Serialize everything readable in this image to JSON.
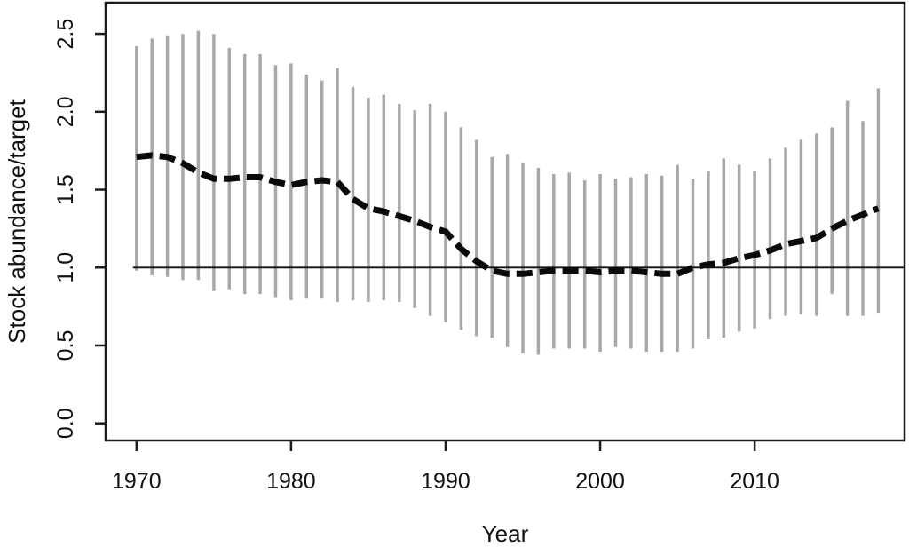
{
  "figure": {
    "xlabel": "Year",
    "ylabel": "Stock abundance/target"
  },
  "chart_data": {
    "type": "line",
    "title": "",
    "xlabel": "Year",
    "ylabel": "Stock abundance/target",
    "grid": false,
    "legend": null,
    "x_tick_labels": [
      "1970",
      "1980",
      "1990",
      "2000",
      "2010"
    ],
    "x_tick_values": [
      1970,
      1980,
      1990,
      2000,
      2010
    ],
    "y_tick_labels": [
      "0.0",
      "0.5",
      "1.0",
      "1.5",
      "2.0",
      "2.5"
    ],
    "y_tick_values": [
      0.0,
      0.5,
      1.0,
      1.5,
      2.0,
      2.5
    ],
    "xlim": [
      1968.0,
      2019.7
    ],
    "ylim": [
      -0.11,
      2.7
    ],
    "reference_line_y": 1.0,
    "years": [
      1970,
      1971,
      1972,
      1973,
      1974,
      1975,
      1976,
      1977,
      1978,
      1979,
      1980,
      1981,
      1982,
      1983,
      1984,
      1985,
      1986,
      1987,
      1988,
      1989,
      1990,
      1991,
      1992,
      1993,
      1994,
      1995,
      1996,
      1997,
      1998,
      1999,
      2000,
      2001,
      2002,
      2003,
      2004,
      2005,
      2006,
      2007,
      2008,
      2009,
      2010,
      2011,
      2012,
      2013,
      2014,
      2015,
      2016,
      2017,
      2018
    ],
    "series": [
      {
        "name": "stock-abundance-relative-to-target",
        "style": "thick-dashed-black",
        "values": [
          1.71,
          1.72,
          1.71,
          1.67,
          1.61,
          1.57,
          1.57,
          1.58,
          1.58,
          1.55,
          1.53,
          1.55,
          1.56,
          1.55,
          1.44,
          1.38,
          1.36,
          1.33,
          1.3,
          1.26,
          1.23,
          1.12,
          1.04,
          0.98,
          0.96,
          0.96,
          0.97,
          0.98,
          0.98,
          0.98,
          0.97,
          0.98,
          0.98,
          0.97,
          0.96,
          0.96,
          1.0,
          1.02,
          1.03,
          1.06,
          1.08,
          1.11,
          1.15,
          1.17,
          1.19,
          1.25,
          1.3,
          1.34,
          1.38
        ]
      }
    ],
    "error_bar_lower": [
      0.98,
      0.95,
      0.94,
      0.92,
      0.92,
      0.85,
      0.86,
      0.83,
      0.83,
      0.81,
      0.79,
      0.8,
      0.8,
      0.78,
      0.79,
      0.78,
      0.79,
      0.78,
      0.74,
      0.69,
      0.65,
      0.6,
      0.56,
      0.55,
      0.49,
      0.45,
      0.44,
      0.48,
      0.48,
      0.48,
      0.46,
      0.49,
      0.48,
      0.46,
      0.46,
      0.46,
      0.48,
      0.54,
      0.55,
      0.59,
      0.61,
      0.67,
      0.69,
      0.7,
      0.69,
      0.83,
      0.69,
      0.69,
      0.71
    ],
    "error_bar_upper": [
      2.42,
      2.47,
      2.49,
      2.5,
      2.52,
      2.5,
      2.41,
      2.37,
      2.37,
      2.3,
      2.31,
      2.24,
      2.2,
      2.28,
      2.16,
      2.09,
      2.11,
      2.05,
      2.01,
      2.05,
      2.0,
      1.9,
      1.82,
      1.71,
      1.73,
      1.67,
      1.64,
      1.6,
      1.61,
      1.56,
      1.6,
      1.57,
      1.58,
      1.6,
      1.59,
      1.66,
      1.57,
      1.62,
      1.7,
      1.66,
      1.62,
      1.7,
      1.77,
      1.82,
      1.86,
      1.9,
      2.07,
      1.94,
      2.15
    ],
    "colors": {
      "line": "#0a0a0a",
      "error_bar": "#a8a8a8",
      "axis": "#1c1c1c",
      "text": "#111111",
      "background": "#ffffff"
    }
  }
}
